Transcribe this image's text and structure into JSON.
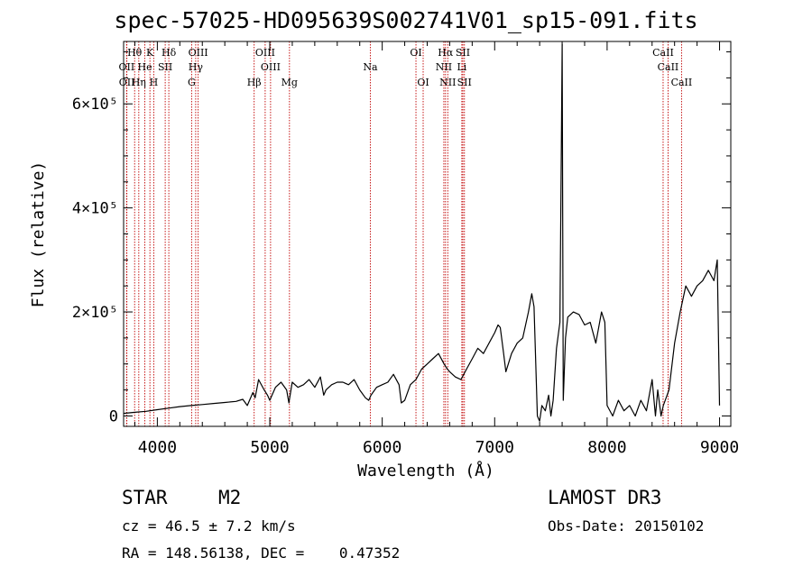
{
  "chart_data": {
    "type": "line",
    "title": "spec-57025-HD095639S002741V01_sp15-091.fits",
    "xlabel": "Wavelength (Å)",
    "ylabel": "Flux (relative)",
    "xlim": [
      3700,
      9100
    ],
    "ylim": [
      -20000,
      720000
    ],
    "xticks": [
      4000,
      5000,
      6000,
      7000,
      8000,
      9000
    ],
    "xtick_labels": [
      "4000",
      "5000",
      "6000",
      "7000",
      "8000",
      "9000"
    ],
    "yticks": [
      0,
      200000,
      400000,
      600000
    ],
    "ytick_labels": [
      "0",
      "2×10⁵",
      "4×10⁵",
      "6×10⁵"
    ],
    "series": [
      {
        "name": "spectrum",
        "x": [
          3700,
          3800,
          3900,
          4000,
          4100,
          4200,
          4300,
          4400,
          4500,
          4600,
          4700,
          4760,
          4800,
          4850,
          4870,
          4900,
          4950,
          4980,
          5000,
          5050,
          5100,
          5150,
          5170,
          5200,
          5250,
          5300,
          5350,
          5400,
          5450,
          5480,
          5500,
          5550,
          5600,
          5650,
          5700,
          5750,
          5800,
          5850,
          5880,
          5900,
          5950,
          6000,
          6050,
          6100,
          6150,
          6170,
          6200,
          6250,
          6300,
          6350,
          6400,
          6450,
          6500,
          6550,
          6580,
          6600,
          6650,
          6700,
          6750,
          6800,
          6850,
          6900,
          6950,
          7000,
          7030,
          7050,
          7080,
          7100,
          7150,
          7200,
          7250,
          7300,
          7330,
          7350,
          7380,
          7400,
          7420,
          7450,
          7480,
          7500,
          7520,
          7550,
          7580,
          7600,
          7610,
          7630,
          7650,
          7700,
          7750,
          7800,
          7850,
          7900,
          7950,
          7980,
          8000,
          8050,
          8100,
          8150,
          8200,
          8250,
          8300,
          8350,
          8400,
          8430,
          8450,
          8480,
          8500,
          8550,
          8600,
          8650,
          8700,
          8750,
          8800,
          8850,
          8900,
          8950,
          8980,
          9000
        ],
        "y": [
          5000,
          7000,
          9000,
          12000,
          15000,
          18000,
          20000,
          22000,
          24000,
          26000,
          28000,
          32000,
          20000,
          45000,
          35000,
          70000,
          50000,
          40000,
          30000,
          55000,
          65000,
          50000,
          25000,
          65000,
          55000,
          60000,
          70000,
          55000,
          75000,
          40000,
          50000,
          60000,
          65000,
          65000,
          60000,
          70000,
          50000,
          35000,
          30000,
          40000,
          55000,
          60000,
          65000,
          80000,
          60000,
          25000,
          30000,
          60000,
          70000,
          90000,
          100000,
          110000,
          120000,
          100000,
          90000,
          85000,
          75000,
          70000,
          90000,
          110000,
          130000,
          120000,
          140000,
          160000,
          175000,
          170000,
          120000,
          85000,
          120000,
          140000,
          150000,
          200000,
          235000,
          210000,
          0,
          -10000,
          20000,
          10000,
          40000,
          0,
          30000,
          130000,
          180000,
          715000,
          30000,
          150000,
          190000,
          200000,
          195000,
          175000,
          180000,
          140000,
          200000,
          180000,
          20000,
          0,
          30000,
          10000,
          20000,
          0,
          30000,
          10000,
          70000,
          0,
          50000,
          0,
          20000,
          50000,
          140000,
          200000,
          250000,
          230000,
          250000,
          260000,
          280000,
          260000,
          300000,
          20000
        ]
      }
    ],
    "line_markers": [
      {
        "label": "Hθ",
        "wavelength": 3798,
        "row": 1
      },
      {
        "label": "OII",
        "wavelength": 3727,
        "row": 2
      },
      {
        "label": "OII",
        "wavelength": 3729,
        "row": 3
      },
      {
        "label": "He",
        "wavelength": 3889,
        "row": 2
      },
      {
        "label": "Hη",
        "wavelength": 3835,
        "row": 3
      },
      {
        "label": "K",
        "wavelength": 3934,
        "row": 1
      },
      {
        "label": "H",
        "wavelength": 3968,
        "row": 3
      },
      {
        "label": "SII",
        "wavelength": 4070,
        "row": 2
      },
      {
        "label": "Hδ",
        "wavelength": 4102,
        "row": 1
      },
      {
        "label": "OIII",
        "wavelength": 4363,
        "row": 1
      },
      {
        "label": "Hγ",
        "wavelength": 4341,
        "row": 2
      },
      {
        "label": "G",
        "wavelength": 4305,
        "row": 3
      },
      {
        "label": "OIII",
        "wavelength": 4959,
        "row": 1
      },
      {
        "label": "OIII",
        "wavelength": 5007,
        "row": 2
      },
      {
        "label": "Hβ",
        "wavelength": 4861,
        "row": 3
      },
      {
        "label": "Mg",
        "wavelength": 5175,
        "row": 3
      },
      {
        "label": "Na",
        "wavelength": 5894,
        "row": 2
      },
      {
        "label": "OI",
        "wavelength": 6300,
        "row": 1
      },
      {
        "label": "OI",
        "wavelength": 6364,
        "row": 3
      },
      {
        "label": "Hα",
        "wavelength": 6563,
        "row": 1
      },
      {
        "label": "NII",
        "wavelength": 6548,
        "row": 2
      },
      {
        "label": "NII",
        "wavelength": 6583,
        "row": 3
      },
      {
        "label": "SII",
        "wavelength": 6717,
        "row": 1
      },
      {
        "label": "Li",
        "wavelength": 6708,
        "row": 2
      },
      {
        "label": "SII",
        "wavelength": 6731,
        "row": 3
      },
      {
        "label": "CaII",
        "wavelength": 8498,
        "row": 1
      },
      {
        "label": "CaII",
        "wavelength": 8542,
        "row": 2
      },
      {
        "label": "CaII",
        "wavelength": 8662,
        "row": 3
      }
    ]
  },
  "info": {
    "object_class": "STAR",
    "subclass": "M2",
    "survey": "LAMOST DR3",
    "redshift": "cz = 46.5 ± 7.2 km/s",
    "obs_date": "Obs-Date: 20150102",
    "coords": "RA = 148.56138, DEC =    0.47352"
  },
  "colors": {
    "line": "#000000",
    "marker": "#c00000"
  }
}
